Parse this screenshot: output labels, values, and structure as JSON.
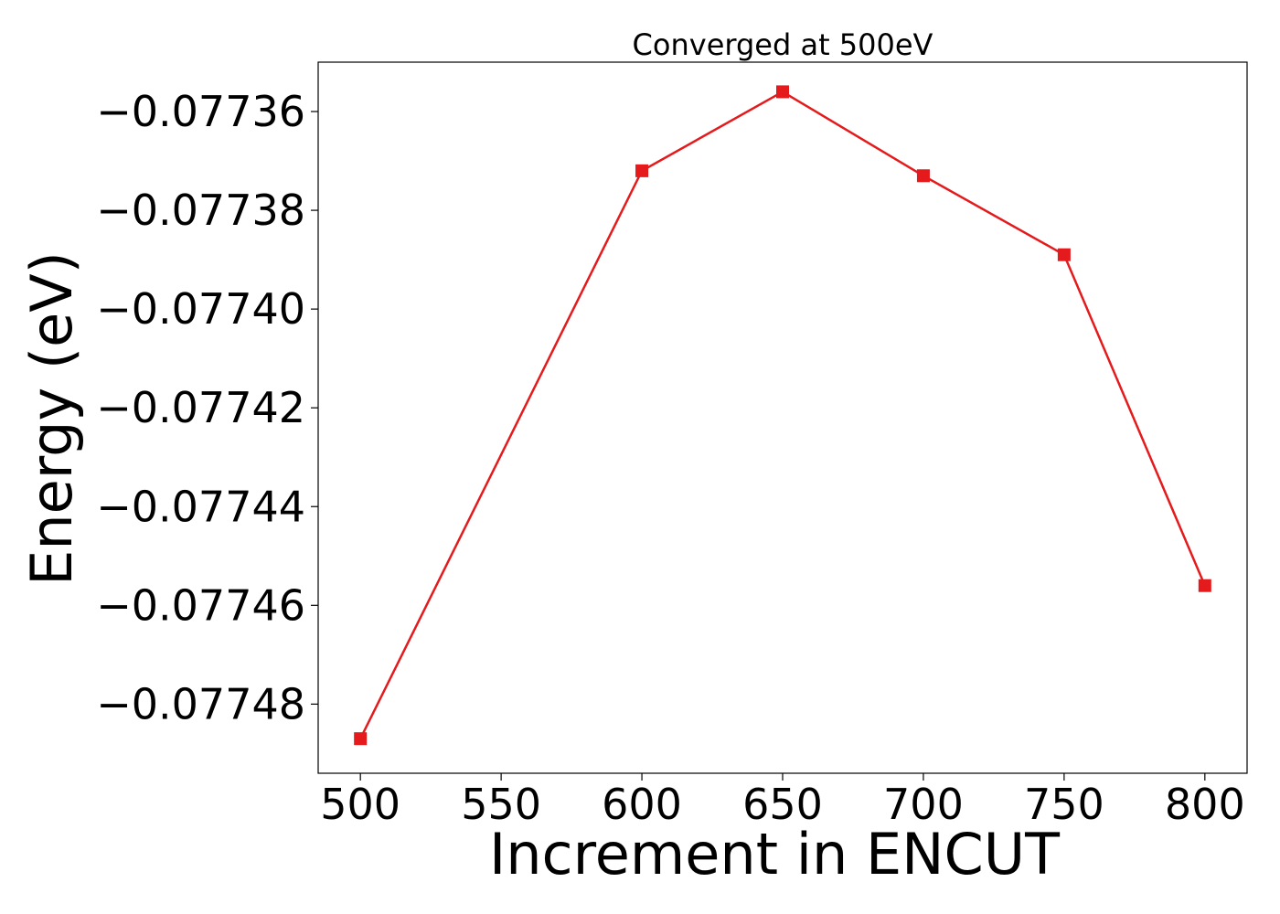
{
  "chart_data": {
    "type": "line",
    "title": "Converged at 500eV",
    "xlabel": "Increment in ENCUT",
    "ylabel": "Energy (eV)",
    "x": [
      500,
      600,
      650,
      700,
      750,
      800
    ],
    "series": [
      {
        "values": [
          -0.077487,
          -0.077372,
          -0.077356,
          -0.077373,
          -0.077389,
          -0.077456
        ],
        "color": "#e41a1c",
        "marker": "square"
      }
    ],
    "xticks": [
      500,
      550,
      600,
      650,
      700,
      750,
      800
    ],
    "xtick_labels": [
      "500",
      "550",
      "600",
      "650",
      "700",
      "750",
      "800"
    ],
    "yticks": [
      -0.07736,
      -0.07738,
      -0.0774,
      -0.07742,
      -0.07744,
      -0.07746,
      -0.07748
    ],
    "ytick_labels": [
      "−0.07736",
      "−0.07738",
      "−0.07740",
      "−0.07742",
      "−0.07744",
      "−0.07746",
      "−0.07748"
    ],
    "xlim": [
      485,
      815
    ],
    "ylim": [
      -0.077494,
      -0.07735
    ],
    "grid": false,
    "legend": "none"
  }
}
